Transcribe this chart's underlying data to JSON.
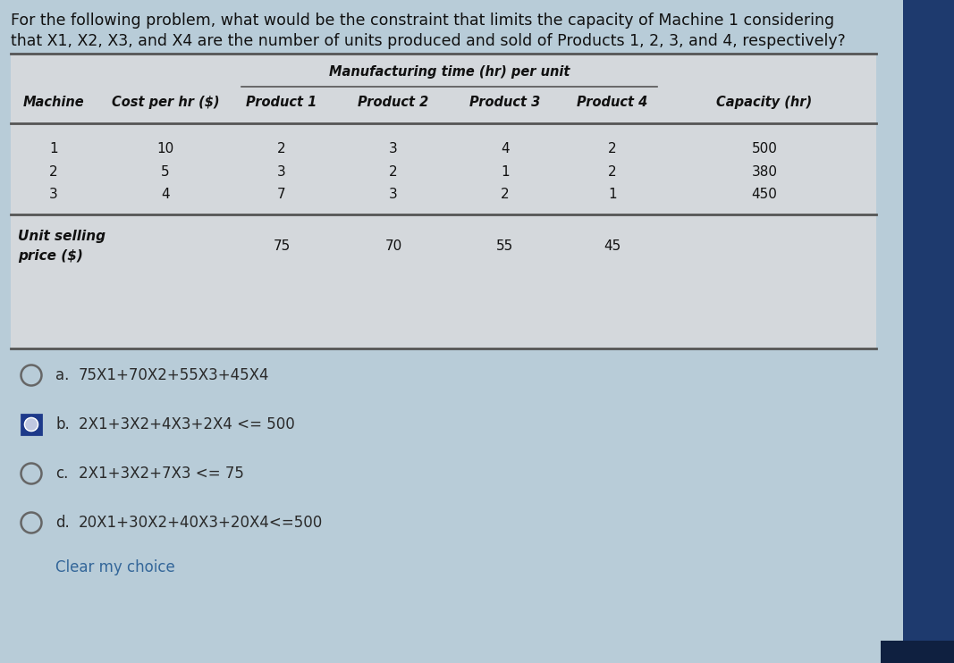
{
  "page_bg": "#b8ccd8",
  "table_bg": "#d4d8dc",
  "question_text_line1": "For the following problem, what would be the constraint that limits the capacity of Machine 1 considering",
  "question_text_line2": "that X1, X2, X3, and X4 are the number of units produced and sold of Products 1, 2, 3, and 4, respectively?",
  "table": {
    "header_top": "Manufacturing time (hr) per unit",
    "col_headers": [
      "Machine",
      "Cost per hr ($)",
      "Product 1",
      "Product 2",
      "Product 3",
      "Product 4",
      "Capacity (hr)"
    ],
    "rows": [
      [
        "1",
        "10",
        "2",
        "3",
        "4",
        "2",
        "500"
      ],
      [
        "2",
        "5",
        "3",
        "2",
        "1",
        "2",
        "380"
      ],
      [
        "3",
        "4",
        "7",
        "3",
        "2",
        "1",
        "450"
      ]
    ],
    "unit_selling_label": [
      "Unit selling",
      "price ($)"
    ],
    "unit_selling_values": [
      "75",
      "70",
      "55",
      "45"
    ]
  },
  "choices": [
    {
      "label": "a.",
      "text": "75X1+70X2+55X3+45X4",
      "selected": false
    },
    {
      "label": "b.",
      "text": "2X1+3X2+4X3+2X4 <= 500",
      "selected": true
    },
    {
      "label": "c.",
      "text": "2X1+3X2+7X3 <= 75",
      "selected": false
    },
    {
      "label": "d.",
      "text": "20X1+30X2+40X3+20X4<=500",
      "selected": false
    }
  ],
  "clear_text": "Clear my choice",
  "sidebar_color": "#1e3a6e",
  "sidebar_bottom_color": "#0f2040",
  "text_color": "#111111",
  "choice_text_color": "#2a2a2a",
  "clear_link_color": "#336699",
  "font_size_question": 12.5,
  "font_size_table_header": 10.5,
  "font_size_table_data": 11,
  "font_size_choices": 12,
  "table_line_color": "#555555",
  "selected_box_outer": "#1e3a8a",
  "selected_box_inner": "#4a6ab8",
  "selected_dot_color": "#c0c8e0"
}
